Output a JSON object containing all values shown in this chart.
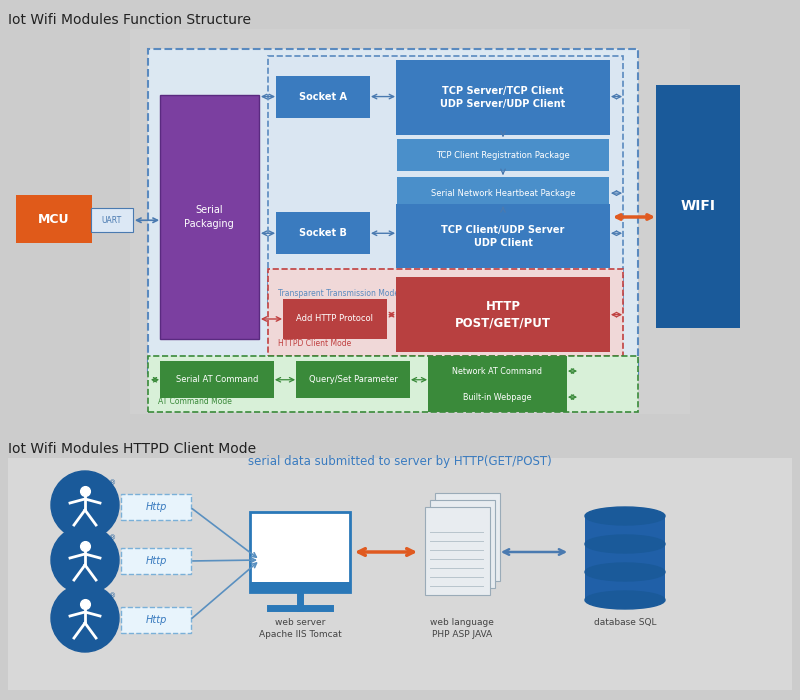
{
  "title1": "Iot Wifi Modules Function Structure",
  "title2": "Iot Wifi Modules HTTPD Client Mode",
  "subtitle2": "serial data submitted to server by HTTP(GET/POST)",
  "bg_top": "#e0e0e0",
  "bg_bottom": "#dcdcdc",
  "panel_gray": "#d4d4d4",
  "inner_gray": "#e8e8e8",
  "blue_box": "#3a7bbf",
  "blue_box2": "#4a8fca",
  "blue_light": "#5ba3d0",
  "green_box": "#3a8a3a",
  "red_box": "#b84040",
  "orange_box": "#e05a1a",
  "purple_box": "#7b3fa0",
  "wifi_blue": "#1a5a9a",
  "arrow_orange": "#e05a20",
  "arrow_blue": "#4a7ab0",
  "dashed_blue": "#5a8abf",
  "dashed_green": "#3a8a3a",
  "dashed_red": "#c04040",
  "text_white": "#ffffff",
  "text_dark": "#222222",
  "text_blue_label": "#3a7bbf"
}
